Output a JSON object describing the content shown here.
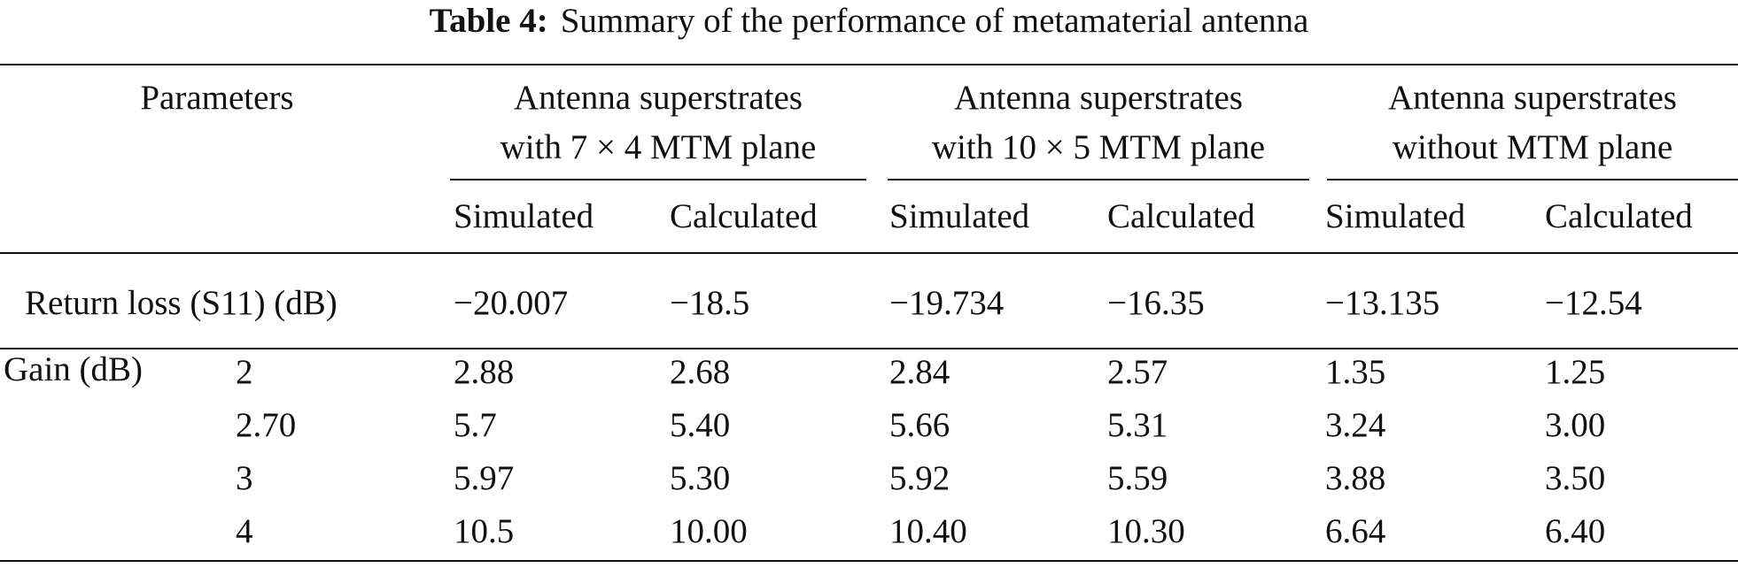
{
  "caption": {
    "label": "Table 4:",
    "text": "Summary of the performance of metamaterial antenna"
  },
  "header": {
    "parameters": "Parameters",
    "groups": [
      {
        "line1": "Antenna superstrates",
        "line2": "with 7 × 4 MTM plane"
      },
      {
        "line1": "Antenna superstrates",
        "line2": "with 10 × 5 MTM plane"
      },
      {
        "line1": "Antenna superstrates",
        "line2": "without MTM plane"
      }
    ],
    "subheaders": [
      "Simulated",
      "Calculated",
      "Simulated",
      "Calculated",
      "Simulated",
      "Calculated"
    ]
  },
  "return_loss": {
    "label": "Return loss (S11) (dB)",
    "values": [
      "−20.007",
      "−18.5",
      "−19.734",
      "−16.35",
      "−13.135",
      "−12.54"
    ]
  },
  "gain": {
    "label": "Gain (dB)",
    "rows": [
      {
        "freq": "2",
        "values": [
          "2.88",
          "2.68",
          "2.84",
          "2.57",
          "1.35",
          "1.25"
        ]
      },
      {
        "freq": "2.70",
        "values": [
          "5.7",
          "5.40",
          "5.66",
          "5.31",
          "3.24",
          "3.00"
        ]
      },
      {
        "freq": "3",
        "values": [
          "5.97",
          "5.30",
          "5.92",
          "5.59",
          "3.88",
          "3.50"
        ]
      },
      {
        "freq": "4",
        "values": [
          "10.5",
          "10.00",
          "10.40",
          "10.30",
          "6.64",
          "6.40"
        ]
      }
    ]
  }
}
